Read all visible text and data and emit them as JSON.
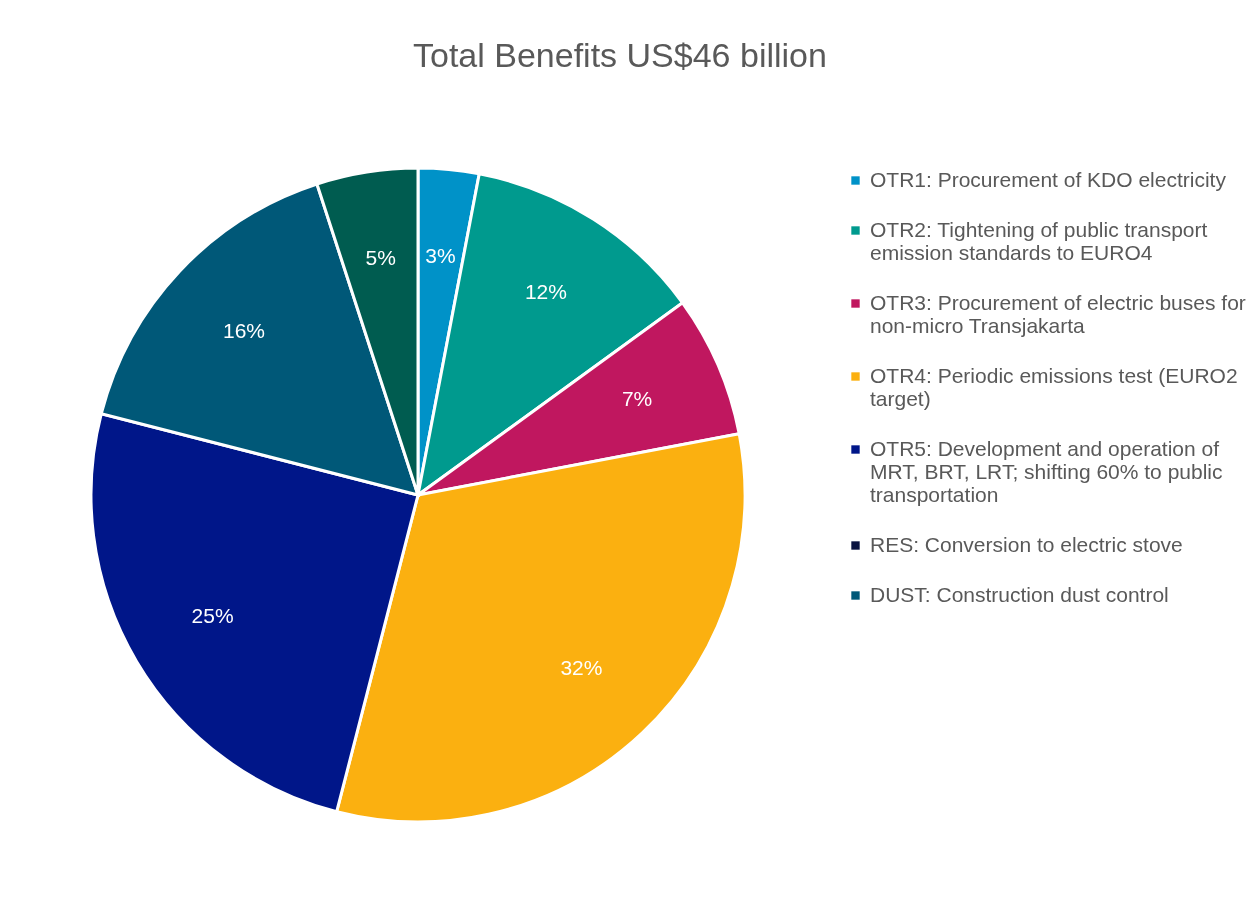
{
  "chart_data": {
    "type": "pie",
    "title": "Total Benefits US$46 billion",
    "categories": [
      "OTR1: Procurement of KDO electricity",
      "OTR2: Tightening of public transport emission standards to EURO4",
      "OTR3: Procurement of electric buses for non-micro Transjakarta",
      "OTR4: Periodic emissions test (EURO2 target)",
      "OTR5: Development and operation of MRT, BRT, LRT; shifting 60% to public transportation",
      "RES: Conversion to electric stove",
      "DUST: Construction dust control",
      null
    ],
    "values": [
      3,
      12,
      7,
      32,
      25,
      null,
      16,
      5
    ],
    "colors": [
      "#0092c8",
      "#009a8e",
      "#c0175f",
      "#fbb010",
      "#001689",
      "#0a1440",
      "#005878",
      "#005c50"
    ],
    "value_labels": [
      "3%",
      "12%",
      "7%",
      "32%",
      "25%",
      null,
      "16%",
      "5%"
    ],
    "legend": "right"
  }
}
